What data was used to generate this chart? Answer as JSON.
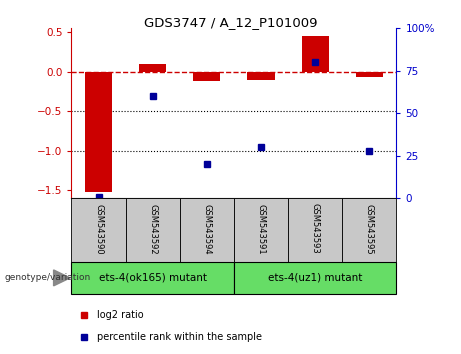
{
  "title": "GDS3747 / A_12_P101009",
  "samples": [
    "GSM543590",
    "GSM543592",
    "GSM543594",
    "GSM543591",
    "GSM543593",
    "GSM543595"
  ],
  "log2_ratios": [
    -1.52,
    0.1,
    -0.12,
    -0.1,
    0.45,
    -0.06
  ],
  "percentile_ranks": [
    1,
    60,
    20,
    30,
    80,
    28
  ],
  "groups": [
    {
      "label": "ets-4(ok165) mutant",
      "color": "#66DD66"
    },
    {
      "label": "ets-4(uz1) mutant",
      "color": "#66DD66"
    }
  ],
  "ylim_left": [
    -1.6,
    0.55
  ],
  "ylim_right": [
    0,
    100
  ],
  "bar_color_red": "#CC0000",
  "bar_color_blue": "#000099",
  "hline_color": "#CC0000",
  "dotted_line_color": "#000000",
  "bg_color": "#ffffff",
  "sample_box_color": "#C8C8C8",
  "title_color": "#000000",
  "left_axis_color": "#CC0000",
  "right_axis_color": "#0000CC",
  "bar_width": 0.5
}
